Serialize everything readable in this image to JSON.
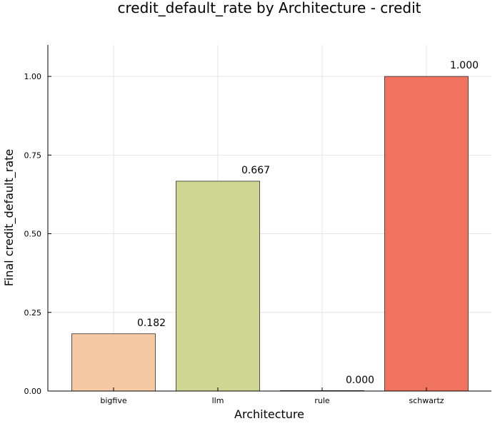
{
  "chart_data": {
    "type": "bar",
    "title": "credit_default_rate by Architecture - credit",
    "xlabel": "Architecture",
    "ylabel": "Final credit_default_rate",
    "categories": [
      "bigfive",
      "llm",
      "rule",
      "schwartz"
    ],
    "values": [
      0.182,
      0.667,
      0.0,
      1.0
    ],
    "data_labels": [
      "0.182",
      "0.667",
      "0.000",
      "1.000"
    ],
    "bar_colors": [
      "#f5c9a3",
      "#d0d793",
      "#dcd5a5",
      "#ef735f"
    ],
    "ylim": [
      0,
      1.1
    ],
    "yticks": [
      0.0,
      0.25,
      0.5,
      0.75,
      1.0
    ],
    "ytick_labels": [
      "0.00",
      "0.25",
      "0.50",
      "0.75",
      "1.00"
    ],
    "grid": true,
    "legend": false
  }
}
